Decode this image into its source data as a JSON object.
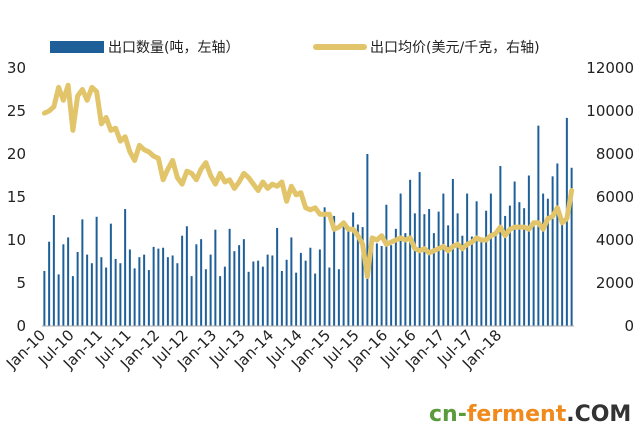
{
  "chart_data": {
    "type": "bar",
    "legend": {
      "placement": "top",
      "items": [
        "出口数量(吨，左轴）",
        "出口均价(美元/千克，右轴)"
      ]
    },
    "x_tick_labels": [
      "Jan-10",
      "Jul-10",
      "Jan-11",
      "Jul-11",
      "Jan-12",
      "Jul-12",
      "Jan-13",
      "Jul-13",
      "Jan-14",
      "Jul-14",
      "Jan-15",
      "Jul-15",
      "Jan-16",
      "Jul-16",
      "Jan-17",
      "Jul-17",
      "Jan-18"
    ],
    "y_left": {
      "ylim": [
        0,
        30
      ],
      "ticks": [
        "0",
        "5",
        "10",
        "15",
        "20",
        "25",
        "30"
      ]
    },
    "y_right": {
      "ylim": [
        0,
        12000
      ],
      "ticks": [
        "0",
        "2000",
        "4000",
        "6000",
        "8000",
        "10000",
        "12000"
      ]
    },
    "grid": false,
    "series": [
      {
        "name": "出口数量(吨，左轴）",
        "type": "bar",
        "axis": "left",
        "color": "#1f5f99",
        "values": [
          6.4,
          9.8,
          12.9,
          6.0,
          9.5,
          10.3,
          5.8,
          8.6,
          12.4,
          8.3,
          7.3,
          12.7,
          8.0,
          6.8,
          11.9,
          7.8,
          7.3,
          13.6,
          8.9,
          6.7,
          8.0,
          8.3,
          6.5,
          9.2,
          9.0,
          9.1,
          8.0,
          8.2,
          7.3,
          10.5,
          11.6,
          5.8,
          9.5,
          10.1,
          6.6,
          8.3,
          11.2,
          5.8,
          6.9,
          11.3,
          8.7,
          9.4,
          10.1,
          6.3,
          7.5,
          7.6,
          6.9,
          8.3,
          8.2,
          11.4,
          6.4,
          7.7,
          10.3,
          6.2,
          8.5,
          7.6,
          9.1,
          6.1,
          8.9,
          13.8,
          6.8,
          12.8,
          6.6,
          12.0,
          11.5,
          13.2,
          11.8,
          11.5,
          20.0,
          10.0,
          9.6,
          9.3,
          14.1,
          9.4,
          11.3,
          15.4,
          10.8,
          17.0,
          13.1,
          17.9,
          13.0,
          13.6,
          10.8,
          13.3,
          15.4,
          11.7,
          17.1,
          13.1,
          10.5,
          15.4,
          10.4,
          14.5,
          9.9,
          13.4,
          15.4,
          10.5,
          18.6,
          12.8,
          14.0,
          16.8,
          14.4,
          13.7,
          17.5,
          12.0,
          23.3,
          15.4,
          14.8,
          17.4,
          18.9,
          12.0,
          24.2,
          18.4
        ]
      },
      {
        "name": "出口均价(美元/千克，右轴)",
        "type": "line",
        "axis": "right",
        "color": "#e2c56a",
        "values": [
          9900,
          10000,
          10200,
          11100,
          10500,
          11200,
          9100,
          10700,
          11000,
          10500,
          11100,
          10900,
          9400,
          9700,
          9100,
          9200,
          8600,
          8800,
          8100,
          7700,
          8400,
          8200,
          8100,
          7900,
          7800,
          6800,
          7300,
          7700,
          6900,
          6600,
          7200,
          7100,
          6800,
          7300,
          7600,
          7000,
          6600,
          7100,
          6700,
          6800,
          6400,
          6700,
          7100,
          6900,
          6600,
          6300,
          6700,
          6400,
          6600,
          6500,
          6700,
          5800,
          6500,
          6100,
          6200,
          5500,
          5400,
          5500,
          5200,
          5200,
          5200,
          4500,
          4600,
          4800,
          4500,
          4500,
          4200,
          3800,
          2300,
          4100,
          4000,
          4200,
          3800,
          3900,
          4000,
          4100,
          4000,
          4100,
          3600,
          3500,
          3600,
          3400,
          3500,
          3600,
          3700,
          3500,
          3700,
          3800,
          3600,
          3800,
          3900,
          4100,
          4000,
          4000,
          4200,
          4300,
          4600,
          4200,
          4500,
          4600,
          4600,
          4600,
          4500,
          4800,
          4800,
          4500,
          5000,
          5100,
          5500,
          4800,
          5000,
          6300
        ]
      }
    ]
  },
  "watermark": {
    "prefix": "cn-",
    "main": "ferment",
    "suffix": ".COM",
    "prefix_color": "#5a9b3c",
    "main_color": "#f08a1c",
    "suffix_color": "#333333"
  }
}
